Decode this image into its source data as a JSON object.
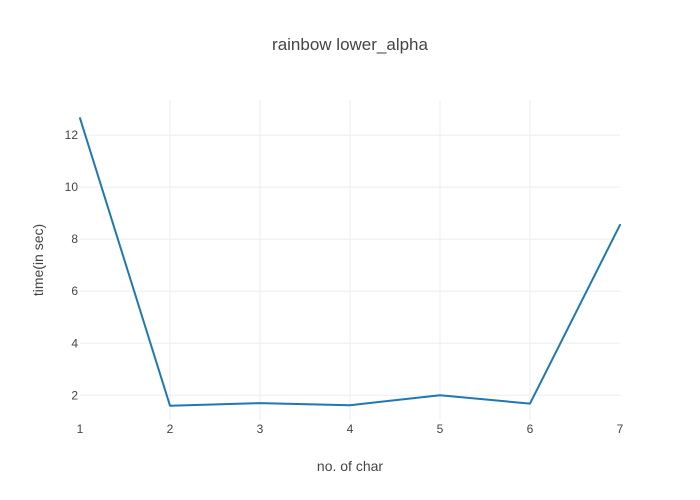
{
  "chart_data": {
    "type": "line",
    "title": "rainbow lower_alpha",
    "xlabel": "no. of char",
    "ylabel": "time(in sec)",
    "x": [
      1,
      2,
      3,
      4,
      5,
      6,
      7
    ],
    "series": [
      {
        "values": [
          12.65,
          1.6,
          1.7,
          1.62,
          2.0,
          1.68,
          8.55
        ],
        "color": "#1f77b4"
      }
    ],
    "xlim": [
      1,
      7
    ],
    "ylim": [
      1.05,
      13.35
    ],
    "xticks": [
      1,
      2,
      3,
      4,
      5,
      6,
      7
    ],
    "yticks": [
      2,
      4,
      6,
      8,
      10,
      12
    ],
    "grid": true,
    "legend": "none"
  }
}
